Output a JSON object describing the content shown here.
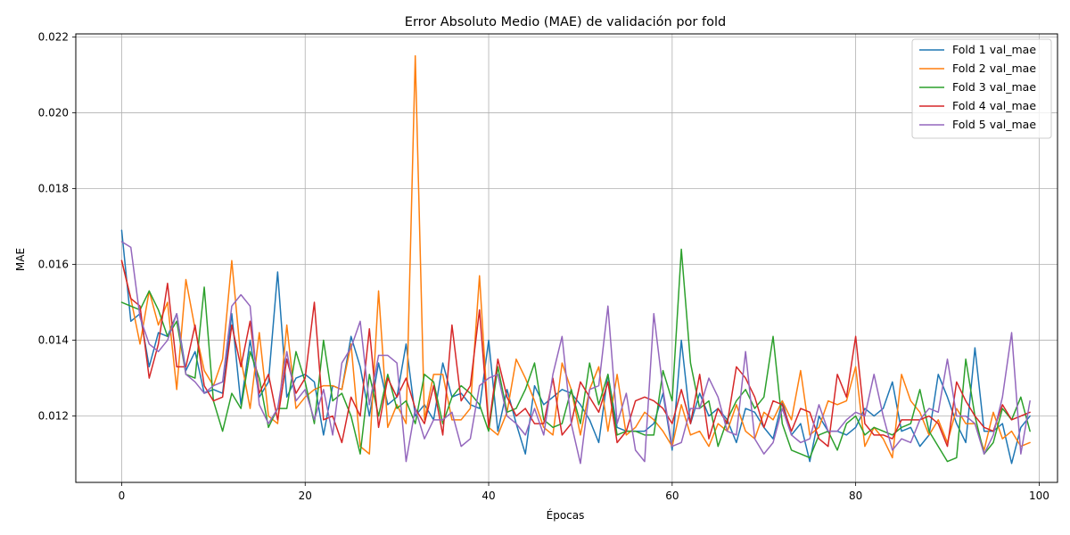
{
  "chart_data": {
    "type": "line",
    "title": "Error Absoluto Medio (MAE) de validación por fold",
    "xlabel": "Épocas",
    "ylabel": "MAE",
    "xlim": [
      -5,
      102
    ],
    "ylim": [
      0.01025,
      0.02208
    ],
    "xticks": [
      0,
      20,
      40,
      60,
      80,
      100
    ],
    "xtick_labels": [
      "0",
      "20",
      "40",
      "60",
      "80",
      "100"
    ],
    "yticks": [
      0.012,
      0.014,
      0.016,
      0.018,
      0.02,
      0.022
    ],
    "ytick_labels": [
      "0.012",
      "0.014",
      "0.016",
      "0.018",
      "0.020",
      "0.022"
    ],
    "grid": true,
    "legend_position": "top-right",
    "x_start": 0,
    "series": [
      {
        "name": "Fold 1 val_mae",
        "color": "#1f77b4",
        "values": [
          0.0169,
          0.0145,
          0.0147,
          0.0133,
          0.0142,
          0.0141,
          0.0147,
          0.0132,
          0.0137,
          0.0126,
          0.0127,
          0.0126,
          0.0147,
          0.0123,
          0.014,
          0.0125,
          0.0129,
          0.0158,
          0.0125,
          0.013,
          0.0131,
          0.0129,
          0.0115,
          0.0128,
          0.0127,
          0.0141,
          0.0133,
          0.012,
          0.0134,
          0.0123,
          0.0125,
          0.0139,
          0.012,
          0.0123,
          0.0119,
          0.0134,
          0.0125,
          0.0126,
          0.0123,
          0.0122,
          0.014,
          0.0116,
          0.0127,
          0.0118,
          0.011,
          0.0128,
          0.0123,
          0.0125,
          0.0127,
          0.0126,
          0.0123,
          0.0119,
          0.0113,
          0.0131,
          0.0117,
          0.0116,
          0.0116,
          0.0116,
          0.0118,
          0.0126,
          0.0111,
          0.014,
          0.0118,
          0.0126,
          0.012,
          0.0122,
          0.0119,
          0.0113,
          0.0122,
          0.0121,
          0.0117,
          0.0114,
          0.0124,
          0.0115,
          0.0118,
          0.0108,
          0.012,
          0.0116,
          0.0116,
          0.0115,
          0.0117,
          0.0122,
          0.012,
          0.0122,
          0.0129,
          0.0116,
          0.0117,
          0.0112,
          0.0115,
          0.0131,
          0.0125,
          0.0118,
          0.0113,
          0.0138,
          0.0116,
          0.0116,
          0.0118,
          0.01075,
          0.0117,
          0.012
        ]
      },
      {
        "name": "Fold 2 val_mae",
        "color": "#ff7f0e",
        "values": [
          0.0161,
          0.0151,
          0.0139,
          0.0153,
          0.0144,
          0.015,
          0.0127,
          0.0156,
          0.0143,
          0.0132,
          0.0128,
          0.0135,
          0.0161,
          0.0135,
          0.0122,
          0.0142,
          0.012,
          0.0118,
          0.0144,
          0.0122,
          0.0125,
          0.0127,
          0.0128,
          0.0128,
          0.0127,
          0.0139,
          0.0112,
          0.011,
          0.0153,
          0.0117,
          0.0123,
          0.0118,
          0.0215,
          0.0119,
          0.0131,
          0.0131,
          0.0119,
          0.0119,
          0.0122,
          0.0157,
          0.0117,
          0.0115,
          0.0121,
          0.0135,
          0.013,
          0.0124,
          0.0117,
          0.0115,
          0.0134,
          0.0127,
          0.0115,
          0.0127,
          0.0133,
          0.0116,
          0.0131,
          0.0115,
          0.0117,
          0.0121,
          0.0119,
          0.0116,
          0.0112,
          0.0123,
          0.0115,
          0.0116,
          0.0112,
          0.0118,
          0.0116,
          0.0123,
          0.0116,
          0.0114,
          0.0121,
          0.0119,
          0.0124,
          0.0119,
          0.0132,
          0.0115,
          0.0117,
          0.0124,
          0.0123,
          0.0124,
          0.0133,
          0.0112,
          0.0117,
          0.0114,
          0.0109,
          0.0131,
          0.0124,
          0.0121,
          0.0115,
          0.0119,
          0.0113,
          0.0122,
          0.0118,
          0.0118,
          0.0111,
          0.0121,
          0.0114,
          0.0116,
          0.0112,
          0.0113
        ]
      },
      {
        "name": "Fold 3 val_mae",
        "color": "#2ca02c",
        "values": [
          0.015,
          0.0149,
          0.0148,
          0.0153,
          0.0148,
          0.0141,
          0.0145,
          0.0131,
          0.013,
          0.0154,
          0.0124,
          0.0116,
          0.0126,
          0.0122,
          0.0137,
          0.013,
          0.0117,
          0.0122,
          0.0122,
          0.0137,
          0.0129,
          0.0118,
          0.014,
          0.0124,
          0.0126,
          0.012,
          0.011,
          0.0131,
          0.012,
          0.0131,
          0.0122,
          0.0124,
          0.0118,
          0.0131,
          0.0129,
          0.0118,
          0.0125,
          0.0128,
          0.0126,
          0.0123,
          0.0116,
          0.0133,
          0.0121,
          0.0122,
          0.0127,
          0.0134,
          0.0119,
          0.0117,
          0.0118,
          0.0127,
          0.0118,
          0.0134,
          0.0123,
          0.0131,
          0.0115,
          0.0116,
          0.0116,
          0.0115,
          0.0115,
          0.0132,
          0.0124,
          0.0164,
          0.0134,
          0.0122,
          0.0124,
          0.0112,
          0.0119,
          0.0124,
          0.0127,
          0.0122,
          0.0125,
          0.0141,
          0.0118,
          0.0111,
          0.011,
          0.0109,
          0.0115,
          0.0116,
          0.0111,
          0.0118,
          0.012,
          0.0115,
          0.0117,
          0.0116,
          0.0115,
          0.0117,
          0.0118,
          0.0127,
          0.0116,
          0.0112,
          0.0108,
          0.0109,
          0.0135,
          0.012,
          0.011,
          0.0113,
          0.0122,
          0.0119,
          0.0125,
          0.0116
        ]
      },
      {
        "name": "Fold 4 val_mae",
        "color": "#d62728",
        "values": [
          0.0161,
          0.0151,
          0.0149,
          0.013,
          0.0139,
          0.0155,
          0.0133,
          0.0133,
          0.0144,
          0.0128,
          0.0124,
          0.0125,
          0.0144,
          0.0133,
          0.0145,
          0.0126,
          0.0131,
          0.0119,
          0.0135,
          0.0126,
          0.013,
          0.015,
          0.0119,
          0.012,
          0.0113,
          0.0125,
          0.012,
          0.0143,
          0.0117,
          0.013,
          0.0125,
          0.013,
          0.0122,
          0.0118,
          0.0128,
          0.0115,
          0.0144,
          0.0124,
          0.0128,
          0.0148,
          0.0117,
          0.0135,
          0.0125,
          0.012,
          0.0122,
          0.0118,
          0.0118,
          0.013,
          0.0115,
          0.0118,
          0.0129,
          0.0125,
          0.0121,
          0.0129,
          0.0113,
          0.0116,
          0.0124,
          0.0125,
          0.0124,
          0.0122,
          0.0118,
          0.0127,
          0.0118,
          0.0131,
          0.0114,
          0.0122,
          0.0118,
          0.0133,
          0.013,
          0.0125,
          0.0117,
          0.0124,
          0.0123,
          0.0116,
          0.0122,
          0.0121,
          0.0114,
          0.0112,
          0.0131,
          0.0125,
          0.0141,
          0.0118,
          0.0115,
          0.0115,
          0.0114,
          0.0119,
          0.0119,
          0.0119,
          0.012,
          0.0118,
          0.0112,
          0.0129,
          0.0124,
          0.012,
          0.0117,
          0.0116,
          0.0123,
          0.0119,
          0.012,
          0.0121
        ]
      },
      {
        "name": "Fold 5 val_mae",
        "color": "#9467bd",
        "values": [
          0.0166,
          0.01645,
          0.0146,
          0.0139,
          0.0137,
          0.014,
          0.0147,
          0.0131,
          0.0129,
          0.0126,
          0.0128,
          0.0129,
          0.0149,
          0.0152,
          0.0149,
          0.0123,
          0.0118,
          0.0122,
          0.0137,
          0.0124,
          0.0127,
          0.0119,
          0.0127,
          0.0115,
          0.0134,
          0.0138,
          0.0145,
          0.0123,
          0.0136,
          0.0136,
          0.0134,
          0.0108,
          0.0122,
          0.0114,
          0.0119,
          0.0119,
          0.0121,
          0.0112,
          0.0114,
          0.0128,
          0.013,
          0.0131,
          0.012,
          0.0118,
          0.0115,
          0.0122,
          0.0115,
          0.0131,
          0.0141,
          0.0118,
          0.01075,
          0.0127,
          0.0128,
          0.0149,
          0.0118,
          0.0126,
          0.0111,
          0.0108,
          0.0147,
          0.0127,
          0.0112,
          0.0113,
          0.0122,
          0.0122,
          0.013,
          0.0125,
          0.0116,
          0.0115,
          0.0137,
          0.0114,
          0.011,
          0.0113,
          0.0122,
          0.0115,
          0.0113,
          0.0114,
          0.0123,
          0.0116,
          0.0116,
          0.0119,
          0.0121,
          0.012,
          0.0131,
          0.012,
          0.0111,
          0.0114,
          0.0113,
          0.0119,
          0.0122,
          0.0121,
          0.0135,
          0.012,
          0.012,
          0.0118,
          0.011,
          0.0115,
          0.0125,
          0.0142,
          0.011,
          0.0124
        ]
      }
    ]
  }
}
